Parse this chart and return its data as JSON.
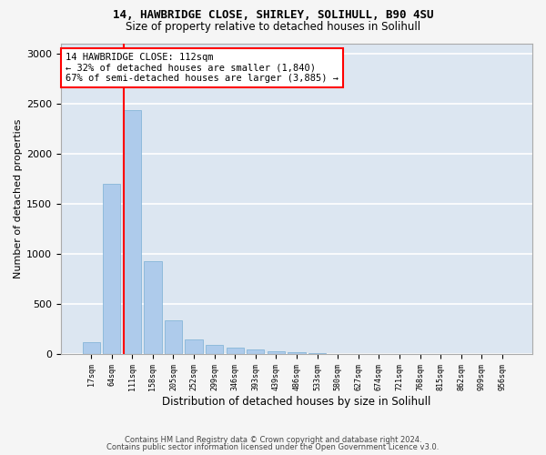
{
  "title1": "14, HAWBRIDGE CLOSE, SHIRLEY, SOLIHULL, B90 4SU",
  "title2": "Size of property relative to detached houses in Solihull",
  "xlabel": "Distribution of detached houses by size in Solihull",
  "ylabel": "Number of detached properties",
  "footnote1": "Contains HM Land Registry data © Crown copyright and database right 2024.",
  "footnote2": "Contains public sector information licensed under the Open Government Licence v3.0.",
  "bar_color": "#aecbeb",
  "bar_edge_color": "#7aafd4",
  "background_color": "#dce6f1",
  "grid_color": "#ffffff",
  "fig_background": "#f5f5f5",
  "categories": [
    "17sqm",
    "64sqm",
    "111sqm",
    "158sqm",
    "205sqm",
    "252sqm",
    "299sqm",
    "346sqm",
    "393sqm",
    "439sqm",
    "486sqm",
    "533sqm",
    "580sqm",
    "627sqm",
    "674sqm",
    "721sqm",
    "768sqm",
    "815sqm",
    "862sqm",
    "909sqm",
    "956sqm"
  ],
  "values": [
    120,
    1700,
    2430,
    930,
    340,
    150,
    90,
    70,
    50,
    30,
    20,
    12,
    5,
    2,
    1,
    0,
    0,
    0,
    0,
    0,
    0
  ],
  "annotation_title": "14 HAWBRIDGE CLOSE: 112sqm",
  "annotation_line1": "← 32% of detached houses are smaller (1,840)",
  "annotation_line2": "67% of semi-detached houses are larger (3,885) →",
  "red_line_bin_idx": 2,
  "ylim": [
    0,
    3100
  ],
  "yticks": [
    0,
    500,
    1000,
    1500,
    2000,
    2500,
    3000
  ]
}
